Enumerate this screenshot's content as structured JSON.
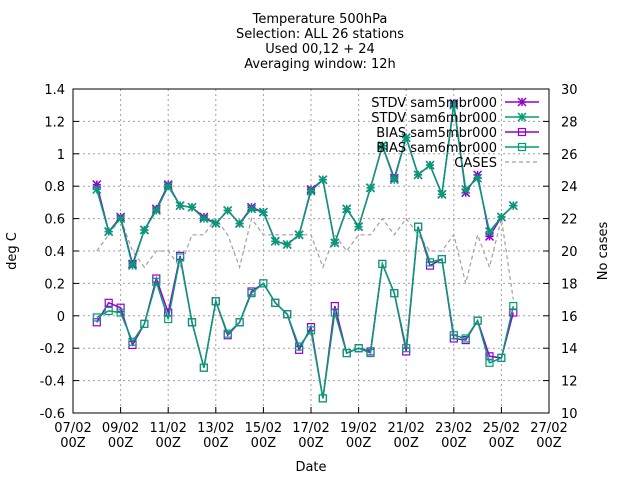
{
  "chart_data": {
    "type": "line",
    "title_lines": [
      "Temperature 500hPa",
      "Selection: ALL      26 stations",
      "Used 00,12 + 24",
      "Averaging window: 12h"
    ],
    "xlabel": "Date",
    "ylabel": "deg C",
    "y2label": "No cases",
    "ylim": [
      -0.6,
      1.4
    ],
    "y2lim": [
      10,
      30
    ],
    "xlim": [
      0,
      40
    ],
    "yticks": [
      "-0.6",
      "-0.4",
      "-0.2",
      "0",
      "0.2",
      "0.4",
      "0.6",
      "0.8",
      "1",
      "1.2",
      "1.4"
    ],
    "y2ticks": [
      "10",
      "12",
      "14",
      "16",
      "18",
      "20",
      "22",
      "24",
      "26",
      "28",
      "30"
    ],
    "xticks": [
      {
        "x": 0,
        "l1": "07/02",
        "l2": "00Z"
      },
      {
        "x": 4,
        "l1": "09/02",
        "l2": "00Z"
      },
      {
        "x": 8,
        "l1": "11/02",
        "l2": "00Z"
      },
      {
        "x": 12,
        "l1": "13/02",
        "l2": "00Z"
      },
      {
        "x": 16,
        "l1": "15/02",
        "l2": "00Z"
      },
      {
        "x": 20,
        "l1": "17/02",
        "l2": "00Z"
      },
      {
        "x": 24,
        "l1": "19/02",
        "l2": "00Z"
      },
      {
        "x": 28,
        "l1": "21/02",
        "l2": "00Z"
      },
      {
        "x": 32,
        "l1": "23/02",
        "l2": "00Z"
      },
      {
        "x": 36,
        "l1": "25/02",
        "l2": "00Z"
      },
      {
        "x": 40,
        "l1": "27/02",
        "l2": "00Z"
      }
    ],
    "grid": true,
    "legend_position": "top-right",
    "x": [
      2,
      3,
      4,
      5,
      6,
      7,
      8,
      9,
      10,
      11,
      12,
      13,
      14,
      15,
      16,
      17,
      18,
      19,
      20,
      21,
      22,
      23,
      24,
      25,
      26,
      27,
      28,
      29,
      30,
      31,
      32,
      33,
      34,
      35,
      36,
      37,
      38
    ],
    "series": [
      {
        "name": "STDV sam5mbr000",
        "color": "#9400d3",
        "marker": "x",
        "axis": "y",
        "values": [
          0.81,
          0.52,
          0.61,
          0.32,
          0.53,
          0.66,
          0.81,
          0.68,
          0.67,
          0.61,
          0.57,
          0.65,
          0.57,
          0.67,
          0.64,
          0.46,
          0.44,
          0.5,
          0.78,
          0.84,
          0.45,
          0.66,
          0.55,
          0.79,
          1.05,
          0.85,
          1.1,
          0.87,
          0.93,
          0.75,
          1.31,
          0.76,
          0.87,
          0.49,
          0.61,
          0.68,
          null
        ]
      },
      {
        "name": "STDV sam6mbr000",
        "color": "#009e73",
        "marker": "x",
        "axis": "y",
        "values": [
          0.78,
          0.52,
          0.6,
          0.31,
          0.53,
          0.65,
          0.8,
          0.68,
          0.67,
          0.6,
          0.57,
          0.65,
          0.57,
          0.66,
          0.64,
          0.46,
          0.44,
          0.5,
          0.77,
          0.84,
          0.45,
          0.66,
          0.55,
          0.79,
          1.05,
          0.84,
          1.1,
          0.87,
          0.93,
          0.75,
          1.3,
          0.78,
          0.85,
          0.52,
          0.61,
          0.68,
          null
        ]
      },
      {
        "name": "BIAS sam5mbr000",
        "color": "#9400d3",
        "marker": "square",
        "axis": "y",
        "values": [
          -0.04,
          0.08,
          0.05,
          -0.18,
          -0.05,
          0.23,
          0.02,
          0.37,
          -0.04,
          -0.32,
          0.09,
          -0.12,
          -0.04,
          0.15,
          0.2,
          0.08,
          0.01,
          -0.21,
          -0.07,
          -0.51,
          0.06,
          -0.23,
          -0.2,
          -0.22,
          0.32,
          0.14,
          -0.22,
          0.55,
          0.31,
          0.35,
          -0.14,
          -0.15,
          -0.03,
          -0.25,
          -0.26,
          0.02,
          null
        ]
      },
      {
        "name": "BIAS sam6mbr000",
        "color": "#009e73",
        "marker": "square",
        "axis": "y",
        "values": [
          -0.01,
          0.03,
          0.02,
          -0.16,
          -0.05,
          0.21,
          -0.02,
          0.36,
          -0.04,
          -0.32,
          0.09,
          -0.11,
          -0.04,
          0.14,
          0.2,
          0.08,
          0.01,
          -0.19,
          -0.09,
          -0.51,
          0.02,
          -0.23,
          -0.2,
          -0.23,
          0.32,
          0.14,
          -0.2,
          0.55,
          0.33,
          0.35,
          -0.12,
          -0.14,
          -0.03,
          -0.29,
          -0.26,
          0.06,
          null
        ]
      },
      {
        "name": "CASES",
        "color": "#a0a0a0",
        "marker": "none",
        "dashed": true,
        "axis": "y2",
        "values": [
          20,
          21,
          22,
          20,
          19,
          20,
          20,
          19,
          21,
          21,
          22,
          21,
          19,
          22,
          21,
          21,
          21,
          21,
          21,
          19,
          21,
          20,
          21,
          21,
          22,
          21,
          22,
          21,
          20,
          20,
          21,
          18,
          21,
          19,
          22,
          17,
          null
        ]
      }
    ]
  }
}
